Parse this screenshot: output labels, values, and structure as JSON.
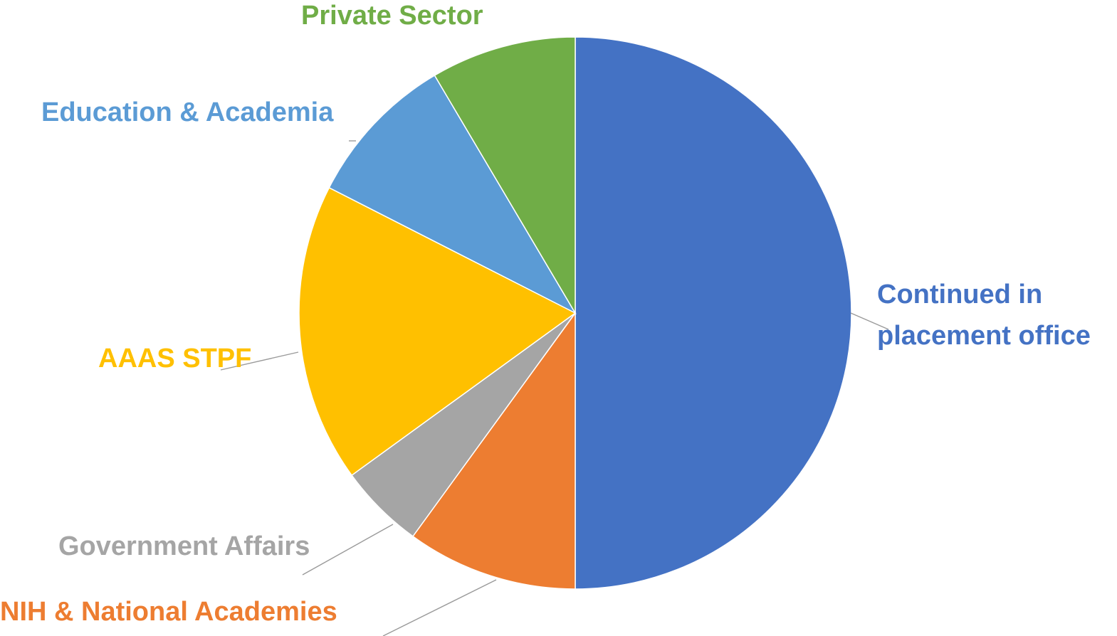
{
  "chart_data": {
    "type": "pie",
    "title": "",
    "start": "12 o'clock",
    "direction": "clockwise",
    "legend": "none",
    "slices": [
      {
        "label": "Continued in placement office",
        "label_lines": [
          "Continued in",
          "placement office"
        ],
        "value": 50,
        "color": "#4472C4"
      },
      {
        "label": "NIH & National Academies",
        "label_lines": [
          "NIH & National Academies"
        ],
        "value": 10,
        "color": "#ED7D31"
      },
      {
        "label": "Government Affairs",
        "label_lines": [
          "Government Affairs"
        ],
        "value": 5,
        "color": "#A5A5A5"
      },
      {
        "label": "AAAS STPF",
        "label_lines": [
          "AAAS STPF"
        ],
        "value": 17.5,
        "color": "#FFC000"
      },
      {
        "label": "Education & Academia",
        "label_lines": [
          "Education & Academia"
        ],
        "value": 9,
        "color": "#5B9BD5"
      },
      {
        "label": "Private Sector",
        "label_lines": [
          "Private Sector"
        ],
        "value": 8.5,
        "color": "#70AD47"
      }
    ]
  }
}
